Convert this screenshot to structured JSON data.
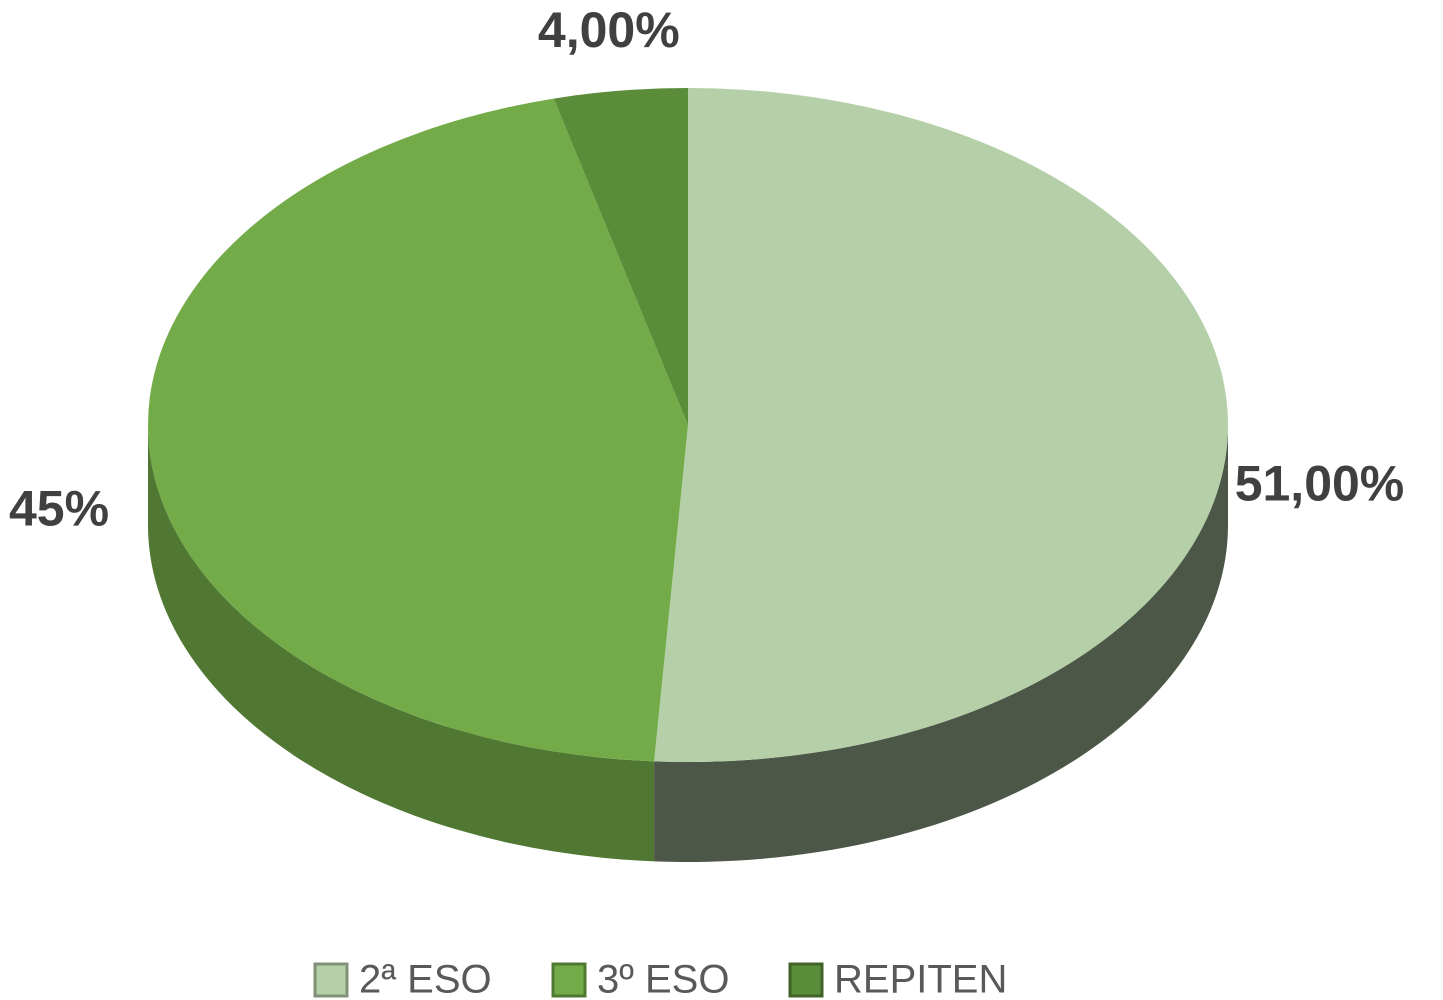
{
  "chart_data": {
    "type": "pie",
    "categories": [
      "2ª ESO",
      "3º ESO",
      "REPITEN"
    ],
    "values": [
      51,
      45,
      4
    ],
    "value_labels": [
      "51,00%",
      "45%",
      "4,00%"
    ],
    "colors": [
      "#b5cfa8",
      "#72ab48",
      "#5b8c3a"
    ],
    "legend": "bottom"
  }
}
